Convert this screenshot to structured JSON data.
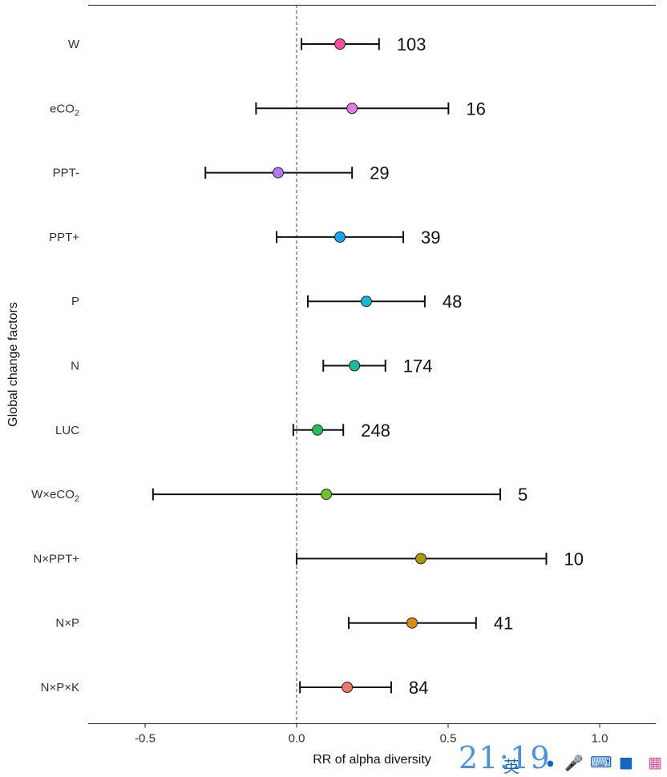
{
  "chart_data": {
    "type": "forest",
    "ylabel": "Global change factors",
    "xlabel": "RR of alpha diversity",
    "xlim": [
      -0.69,
      1.19
    ],
    "xticks": [
      -0.5,
      0.0,
      0.5,
      1.0
    ],
    "xtick_labels": [
      "-0.5",
      "0.0",
      "0.5",
      "1.0"
    ],
    "reference_line": 0.0,
    "rows": [
      {
        "name": "W",
        "sub": "",
        "mean": 0.143,
        "lower": 0.016,
        "upper": 0.272,
        "n": "103",
        "color": "#ff4fa3"
      },
      {
        "name": "eCO",
        "sub": "2",
        "mean": 0.183,
        "lower": -0.134,
        "upper": 0.501,
        "n": "16",
        "color": "#e877e8"
      },
      {
        "name": "PPT-",
        "sub": "",
        "mean": -0.061,
        "lower": -0.301,
        "upper": 0.183,
        "n": "29",
        "color": "#b07cf5"
      },
      {
        "name": "PPT+",
        "sub": "",
        "mean": 0.143,
        "lower": -0.066,
        "upper": 0.352,
        "n": "39",
        "color": "#1aa3ee"
      },
      {
        "name": "P",
        "sub": "",
        "mean": 0.23,
        "lower": 0.037,
        "upper": 0.423,
        "n": "48",
        "color": "#19b8d0"
      },
      {
        "name": "N",
        "sub": "",
        "mean": 0.191,
        "lower": 0.088,
        "upper": 0.293,
        "n": "174",
        "color": "#1fb8a2"
      },
      {
        "name": "LUC",
        "sub": "",
        "mean": 0.069,
        "lower": -0.011,
        "upper": 0.154,
        "n": "248",
        "color": "#20c05c"
      },
      {
        "name": "W×eCO",
        "sub": "2",
        "mean": 0.098,
        "lower": -0.474,
        "upper": 0.672,
        "n": "5",
        "color": "#6cc52c"
      },
      {
        "name": "N×PPT+",
        "sub": "",
        "mean": 0.41,
        "lower": 0.0,
        "upper": 0.824,
        "n": "10",
        "color": "#a59a08"
      },
      {
        "name": "N×P",
        "sub": "",
        "mean": 0.381,
        "lower": 0.172,
        "upper": 0.592,
        "n": "41",
        "color": "#dc8c12"
      },
      {
        "name": "N×P×K",
        "sub": "",
        "mean": 0.167,
        "lower": 0.011,
        "upper": 0.312,
        "n": "84",
        "color": "#f2776a"
      }
    ]
  },
  "overlay": {
    "time": "21:19",
    "ime_char": "英",
    "icons": [
      "dot-icon",
      "microphone-icon",
      "keyboard-icon",
      "shirt-icon",
      "apps-icon"
    ]
  }
}
